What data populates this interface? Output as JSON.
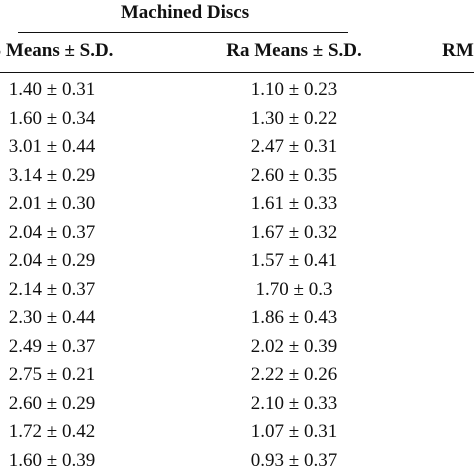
{
  "table": {
    "group_title": "Machined Discs",
    "columns": [
      "S Means ± S.D.",
      "Ra Means ± S.D.",
      "RM"
    ],
    "rows": [
      [
        "1.40 ± 0.31",
        "1.10 ± 0.23"
      ],
      [
        "1.60 ± 0.34",
        "1.30 ± 0.22"
      ],
      [
        "3.01 ± 0.44",
        "2.47 ± 0.31"
      ],
      [
        "3.14 ± 0.29",
        "2.60 ± 0.35"
      ],
      [
        "2.01 ± 0.30",
        "1.61 ± 0.33"
      ],
      [
        "2.04 ± 0.37",
        "1.67 ± 0.32"
      ],
      [
        "2.04 ± 0.29",
        "1.57 ± 0.41"
      ],
      [
        "2.14 ± 0.37",
        "1.70 ± 0.3"
      ],
      [
        "2.30 ± 0.44",
        "1.86 ± 0.43"
      ],
      [
        "2.49 ± 0.37",
        "2.02 ± 0.39"
      ],
      [
        "2.75 ± 0.21",
        "2.22 ± 0.26"
      ],
      [
        "2.60 ± 0.29",
        "2.10 ± 0.33"
      ],
      [
        "1.72 ± 0.42",
        "1.07 ± 0.31"
      ],
      [
        "1.60 ± 0.39",
        "0.93 ± 0.37"
      ]
    ]
  }
}
